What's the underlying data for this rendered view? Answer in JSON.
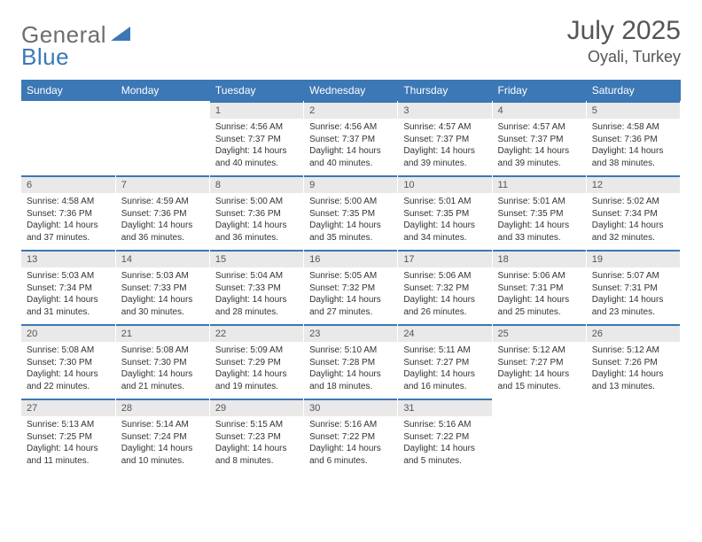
{
  "brand": {
    "word1": "General",
    "word2": "Blue"
  },
  "title": {
    "month": "July 2025",
    "location": "Oyali, Turkey"
  },
  "colors": {
    "header_bg": "#3b78b5",
    "header_text": "#ffffff",
    "daynum_bg": "#e9e9e9",
    "rule": "#3b78b5",
    "body_text": "#333333",
    "muted": "#555555"
  },
  "fonts": {
    "title_size_pt": 22,
    "location_size_pt": 14,
    "dayhead_size_pt": 9,
    "cell_size_pt": 7.5
  },
  "day_labels": [
    "Sunday",
    "Monday",
    "Tuesday",
    "Wednesday",
    "Thursday",
    "Friday",
    "Saturday"
  ],
  "weeks": [
    [
      null,
      null,
      {
        "n": "1",
        "sr": "4:56 AM",
        "ss": "7:37 PM",
        "dl": "14 hours and 40 minutes."
      },
      {
        "n": "2",
        "sr": "4:56 AM",
        "ss": "7:37 PM",
        "dl": "14 hours and 40 minutes."
      },
      {
        "n": "3",
        "sr": "4:57 AM",
        "ss": "7:37 PM",
        "dl": "14 hours and 39 minutes."
      },
      {
        "n": "4",
        "sr": "4:57 AM",
        "ss": "7:37 PM",
        "dl": "14 hours and 39 minutes."
      },
      {
        "n": "5",
        "sr": "4:58 AM",
        "ss": "7:36 PM",
        "dl": "14 hours and 38 minutes."
      }
    ],
    [
      {
        "n": "6",
        "sr": "4:58 AM",
        "ss": "7:36 PM",
        "dl": "14 hours and 37 minutes."
      },
      {
        "n": "7",
        "sr": "4:59 AM",
        "ss": "7:36 PM",
        "dl": "14 hours and 36 minutes."
      },
      {
        "n": "8",
        "sr": "5:00 AM",
        "ss": "7:36 PM",
        "dl": "14 hours and 36 minutes."
      },
      {
        "n": "9",
        "sr": "5:00 AM",
        "ss": "7:35 PM",
        "dl": "14 hours and 35 minutes."
      },
      {
        "n": "10",
        "sr": "5:01 AM",
        "ss": "7:35 PM",
        "dl": "14 hours and 34 minutes."
      },
      {
        "n": "11",
        "sr": "5:01 AM",
        "ss": "7:35 PM",
        "dl": "14 hours and 33 minutes."
      },
      {
        "n": "12",
        "sr": "5:02 AM",
        "ss": "7:34 PM",
        "dl": "14 hours and 32 minutes."
      }
    ],
    [
      {
        "n": "13",
        "sr": "5:03 AM",
        "ss": "7:34 PM",
        "dl": "14 hours and 31 minutes."
      },
      {
        "n": "14",
        "sr": "5:03 AM",
        "ss": "7:33 PM",
        "dl": "14 hours and 30 minutes."
      },
      {
        "n": "15",
        "sr": "5:04 AM",
        "ss": "7:33 PM",
        "dl": "14 hours and 28 minutes."
      },
      {
        "n": "16",
        "sr": "5:05 AM",
        "ss": "7:32 PM",
        "dl": "14 hours and 27 minutes."
      },
      {
        "n": "17",
        "sr": "5:06 AM",
        "ss": "7:32 PM",
        "dl": "14 hours and 26 minutes."
      },
      {
        "n": "18",
        "sr": "5:06 AM",
        "ss": "7:31 PM",
        "dl": "14 hours and 25 minutes."
      },
      {
        "n": "19",
        "sr": "5:07 AM",
        "ss": "7:31 PM",
        "dl": "14 hours and 23 minutes."
      }
    ],
    [
      {
        "n": "20",
        "sr": "5:08 AM",
        "ss": "7:30 PM",
        "dl": "14 hours and 22 minutes."
      },
      {
        "n": "21",
        "sr": "5:08 AM",
        "ss": "7:30 PM",
        "dl": "14 hours and 21 minutes."
      },
      {
        "n": "22",
        "sr": "5:09 AM",
        "ss": "7:29 PM",
        "dl": "14 hours and 19 minutes."
      },
      {
        "n": "23",
        "sr": "5:10 AM",
        "ss": "7:28 PM",
        "dl": "14 hours and 18 minutes."
      },
      {
        "n": "24",
        "sr": "5:11 AM",
        "ss": "7:27 PM",
        "dl": "14 hours and 16 minutes."
      },
      {
        "n": "25",
        "sr": "5:12 AM",
        "ss": "7:27 PM",
        "dl": "14 hours and 15 minutes."
      },
      {
        "n": "26",
        "sr": "5:12 AM",
        "ss": "7:26 PM",
        "dl": "14 hours and 13 minutes."
      }
    ],
    [
      {
        "n": "27",
        "sr": "5:13 AM",
        "ss": "7:25 PM",
        "dl": "14 hours and 11 minutes."
      },
      {
        "n": "28",
        "sr": "5:14 AM",
        "ss": "7:24 PM",
        "dl": "14 hours and 10 minutes."
      },
      {
        "n": "29",
        "sr": "5:15 AM",
        "ss": "7:23 PM",
        "dl": "14 hours and 8 minutes."
      },
      {
        "n": "30",
        "sr": "5:16 AM",
        "ss": "7:22 PM",
        "dl": "14 hours and 6 minutes."
      },
      {
        "n": "31",
        "sr": "5:16 AM",
        "ss": "7:22 PM",
        "dl": "14 hours and 5 minutes."
      },
      null,
      null
    ]
  ],
  "labels": {
    "sunrise": "Sunrise:",
    "sunset": "Sunset:",
    "daylight": "Daylight:"
  }
}
